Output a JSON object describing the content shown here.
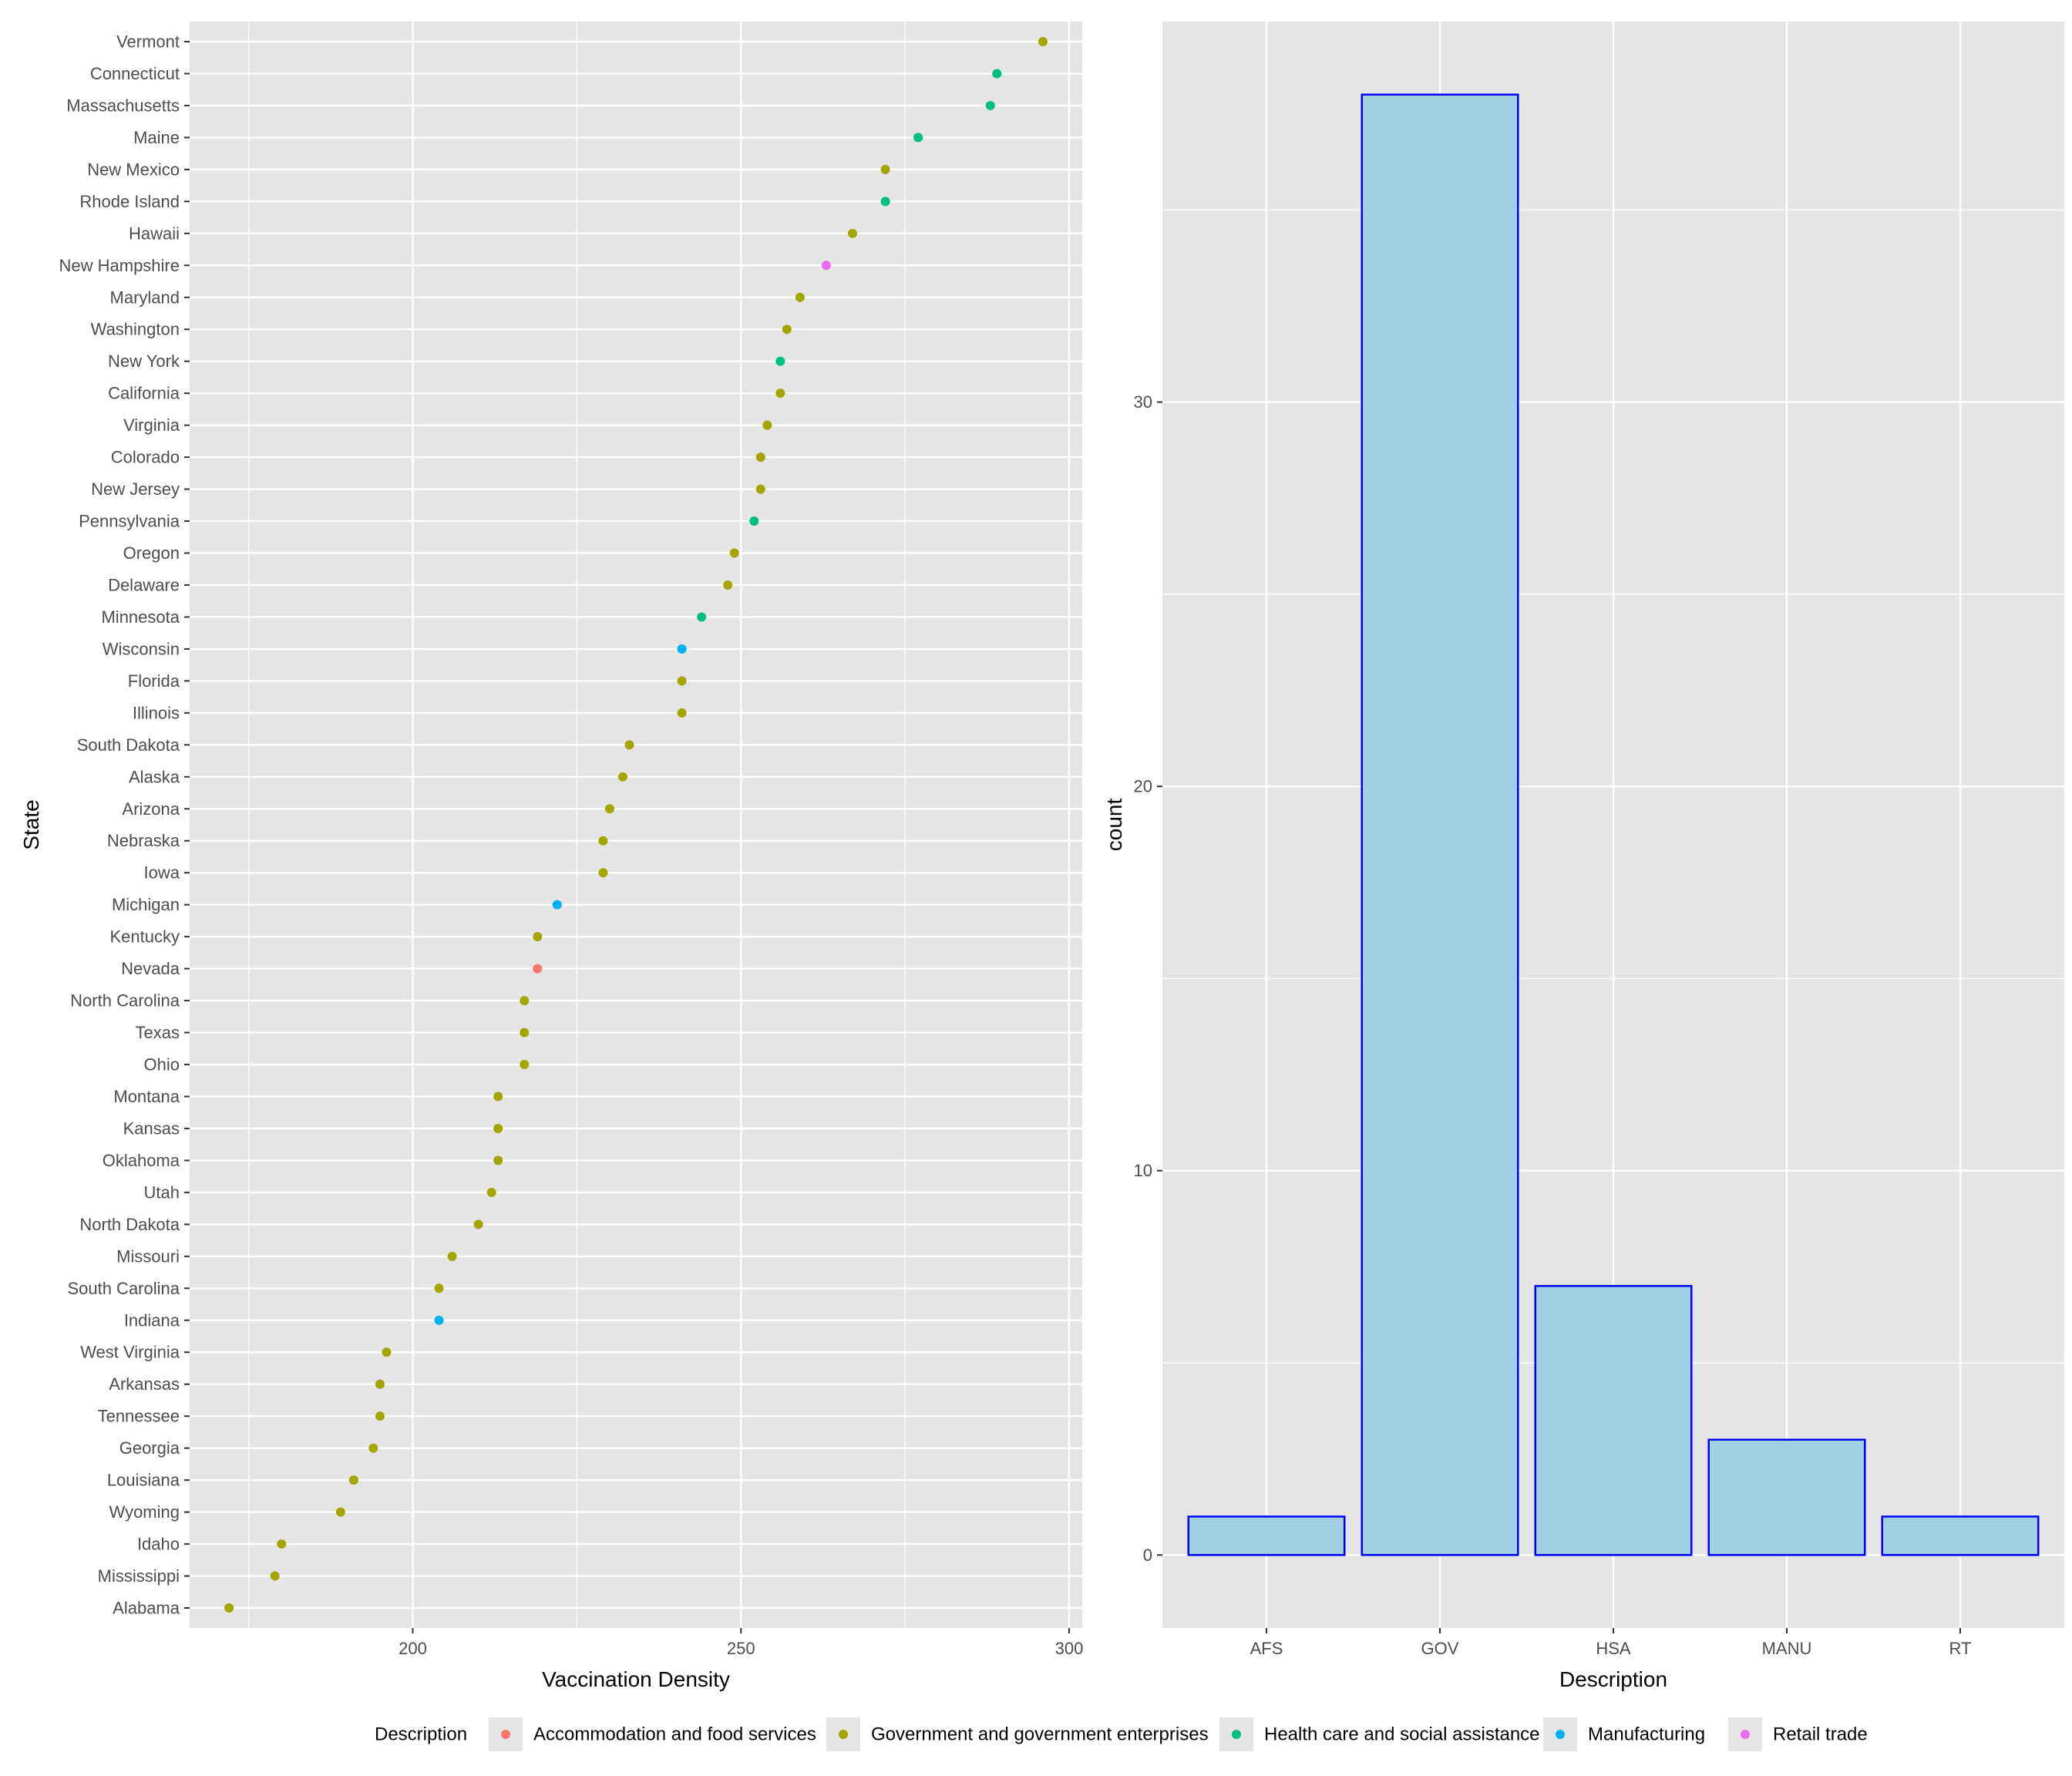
{
  "charts": [
    {
      "type": "scatter",
      "xlabel": "Vaccination Density",
      "ylabel": "State",
      "xlim": [
        166,
        302
      ],
      "xticks": [
        200,
        250,
        300
      ],
      "grid": true,
      "points": [
        {
          "state": "Vermont",
          "x": 296,
          "description": "Government and government enterprises"
        },
        {
          "state": "Connecticut",
          "x": 289,
          "description": "Health care and social assistance"
        },
        {
          "state": "Massachusetts",
          "x": 288,
          "description": "Health care and social assistance"
        },
        {
          "state": "Maine",
          "x": 277,
          "description": "Health care and social assistance"
        },
        {
          "state": "New Mexico",
          "x": 272,
          "description": "Government and government enterprises"
        },
        {
          "state": "Rhode Island",
          "x": 272,
          "description": "Health care and social assistance"
        },
        {
          "state": "Hawaii",
          "x": 267,
          "description": "Government and government enterprises"
        },
        {
          "state": "New Hampshire",
          "x": 263,
          "description": "Retail trade"
        },
        {
          "state": "Maryland",
          "x": 259,
          "description": "Government and government enterprises"
        },
        {
          "state": "Washington",
          "x": 257,
          "description": "Government and government enterprises"
        },
        {
          "state": "New York",
          "x": 256,
          "description": "Health care and social assistance"
        },
        {
          "state": "California",
          "x": 256,
          "description": "Government and government enterprises"
        },
        {
          "state": "Virginia",
          "x": 254,
          "description": "Government and government enterprises"
        },
        {
          "state": "Colorado",
          "x": 253,
          "description": "Government and government enterprises"
        },
        {
          "state": "New Jersey",
          "x": 253,
          "description": "Government and government enterprises"
        },
        {
          "state": "Pennsylvania",
          "x": 252,
          "description": "Health care and social assistance"
        },
        {
          "state": "Oregon",
          "x": 249,
          "description": "Government and government enterprises"
        },
        {
          "state": "Delaware",
          "x": 248,
          "description": "Government and government enterprises"
        },
        {
          "state": "Minnesota",
          "x": 244,
          "description": "Health care and social assistance"
        },
        {
          "state": "Wisconsin",
          "x": 241,
          "description": "Manufacturing"
        },
        {
          "state": "Florida",
          "x": 241,
          "description": "Government and government enterprises"
        },
        {
          "state": "Illinois",
          "x": 241,
          "description": "Government and government enterprises"
        },
        {
          "state": "South Dakota",
          "x": 233,
          "description": "Government and government enterprises"
        },
        {
          "state": "Alaska",
          "x": 232,
          "description": "Government and government enterprises"
        },
        {
          "state": "Arizona",
          "x": 230,
          "description": "Government and government enterprises"
        },
        {
          "state": "Nebraska",
          "x": 229,
          "description": "Government and government enterprises"
        },
        {
          "state": "Iowa",
          "x": 229,
          "description": "Government and government enterprises"
        },
        {
          "state": "Michigan",
          "x": 222,
          "description": "Manufacturing"
        },
        {
          "state": "Kentucky",
          "x": 219,
          "description": "Government and government enterprises"
        },
        {
          "state": "Nevada",
          "x": 219,
          "description": "Accommodation and food services"
        },
        {
          "state": "North Carolina",
          "x": 217,
          "description": "Government and government enterprises"
        },
        {
          "state": "Texas",
          "x": 217,
          "description": "Government and government enterprises"
        },
        {
          "state": "Ohio",
          "x": 217,
          "description": "Government and government enterprises"
        },
        {
          "state": "Montana",
          "x": 213,
          "description": "Government and government enterprises"
        },
        {
          "state": "Kansas",
          "x": 213,
          "description": "Government and government enterprises"
        },
        {
          "state": "Oklahoma",
          "x": 213,
          "description": "Government and government enterprises"
        },
        {
          "state": "Utah",
          "x": 212,
          "description": "Government and government enterprises"
        },
        {
          "state": "North Dakota",
          "x": 210,
          "description": "Government and government enterprises"
        },
        {
          "state": "Missouri",
          "x": 206,
          "description": "Government and government enterprises"
        },
        {
          "state": "South Carolina",
          "x": 204,
          "description": "Government and government enterprises"
        },
        {
          "state": "Indiana",
          "x": 204,
          "description": "Manufacturing"
        },
        {
          "state": "West Virginia",
          "x": 196,
          "description": "Government and government enterprises"
        },
        {
          "state": "Arkansas",
          "x": 195,
          "description": "Government and government enterprises"
        },
        {
          "state": "Tennessee",
          "x": 195,
          "description": "Government and government enterprises"
        },
        {
          "state": "Georgia",
          "x": 194,
          "description": "Government and government enterprises"
        },
        {
          "state": "Louisiana",
          "x": 191,
          "description": "Government and government enterprises"
        },
        {
          "state": "Wyoming",
          "x": 189,
          "description": "Government and government enterprises"
        },
        {
          "state": "Idaho",
          "x": 180,
          "description": "Government and government enterprises"
        },
        {
          "state": "Mississippi",
          "x": 179,
          "description": "Government and government enterprises"
        },
        {
          "state": "Alabama",
          "x": 172,
          "description": "Government and government enterprises"
        }
      ]
    },
    {
      "type": "bar",
      "xlabel": "Description",
      "ylabel": "count",
      "categories": [
        "AFS",
        "GOV",
        "HSA",
        "MANU",
        "RT"
      ],
      "values": [
        1,
        38,
        7,
        3,
        1
      ],
      "ylim": [
        -1.9,
        39.9
      ],
      "yticks": [
        0,
        10,
        20,
        30
      ],
      "bar_fill": "#a0cfe0",
      "bar_stroke": "#0000ff",
      "grid": true
    }
  ],
  "legend": {
    "title": "Description",
    "placement": "bottom",
    "items": [
      {
        "label": "Accommodation and food services",
        "color": "#f8766d"
      },
      {
        "label": "Government and government enterprises",
        "color": "#a3a500"
      },
      {
        "label": "Health care and social assistance",
        "color": "#00bf7d"
      },
      {
        "label": "Manufacturing",
        "color": "#00b0f6"
      },
      {
        "label": "Retail trade",
        "color": "#e76bf3"
      }
    ]
  },
  "theme": {
    "panel_background": "#e5e5e5",
    "grid_color": "#ffffff",
    "tick_color": "#333333"
  }
}
